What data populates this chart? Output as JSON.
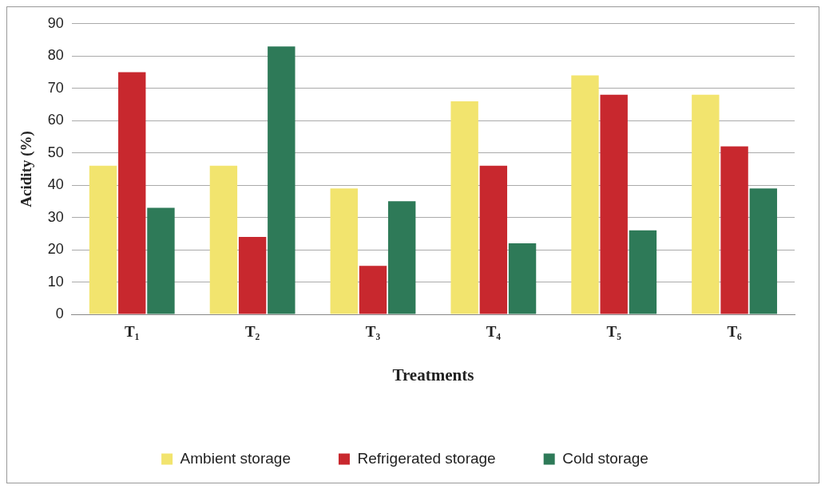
{
  "chart_data": {
    "type": "bar",
    "xlabel": "Treatments",
    "ylabel": "Acidity (%)",
    "categories": [
      "T₁",
      "T₂",
      "T₃",
      "T₄",
      "T₅",
      "T₆"
    ],
    "series": [
      {
        "name": "Ambient storage",
        "color": "#f2e46e",
        "values": [
          46,
          46,
          39,
          66,
          74,
          68
        ]
      },
      {
        "name": "Refrigerated storage",
        "color": "#c8282e",
        "values": [
          75,
          24,
          15,
          46,
          68,
          52
        ]
      },
      {
        "name": "Cold storage",
        "color": "#2e7a58",
        "values": [
          33,
          83,
          35,
          22,
          26,
          39
        ]
      }
    ],
    "ylim": [
      0,
      90
    ],
    "yticks": [
      0,
      10,
      20,
      30,
      40,
      50,
      60,
      70,
      80,
      90
    ],
    "grid": "y",
    "legend": "bottom"
  }
}
